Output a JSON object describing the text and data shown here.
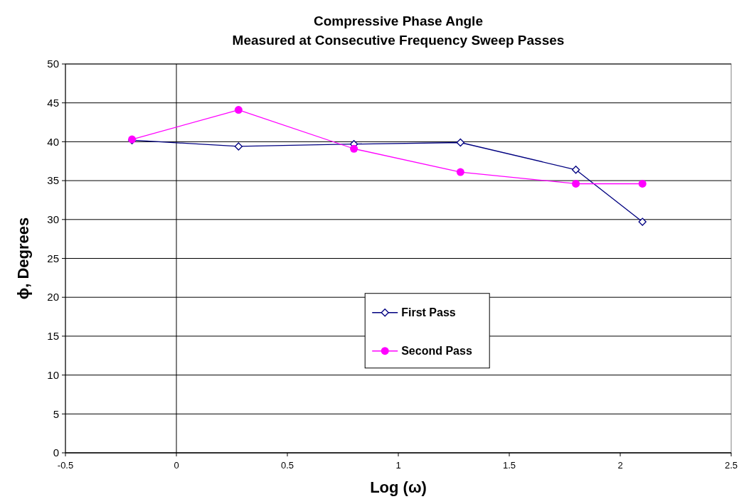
{
  "chart_data": {
    "type": "line",
    "title": "Compressive Phase Angle",
    "subtitle": "Measured at Consecutive Frequency Sweep Passes",
    "xlabel": "Log (ω)",
    "ylabel": "ϕ, Degrees",
    "series": [
      {
        "name": "First Pass",
        "color": "#000080",
        "marker": "diamond",
        "x": [
          -0.2,
          0.28,
          0.8,
          1.28,
          1.8,
          2.1
        ],
        "values": [
          40.2,
          39.4,
          39.7,
          39.9,
          36.4,
          29.7
        ]
      },
      {
        "name": "Second Pass",
        "color": "#ff00ff",
        "marker": "circle",
        "x": [
          -0.2,
          0.28,
          0.8,
          1.28,
          1.8,
          2.1
        ],
        "values": [
          40.3,
          44.1,
          39.1,
          36.1,
          34.6,
          34.6
        ]
      }
    ],
    "xlim": [
      -0.5,
      2.5
    ],
    "xticks": [
      -0.5,
      0,
      0.5,
      1,
      1.5,
      2,
      2.5
    ],
    "ylim": [
      0,
      50
    ],
    "yticks": [
      0,
      5,
      10,
      15,
      20,
      25,
      30,
      35,
      40,
      45,
      50
    ],
    "ref_lines": [
      {
        "axis": "x",
        "value": 0,
        "color": "#000000"
      }
    ],
    "grid": "y",
    "legend": "bottom"
  }
}
